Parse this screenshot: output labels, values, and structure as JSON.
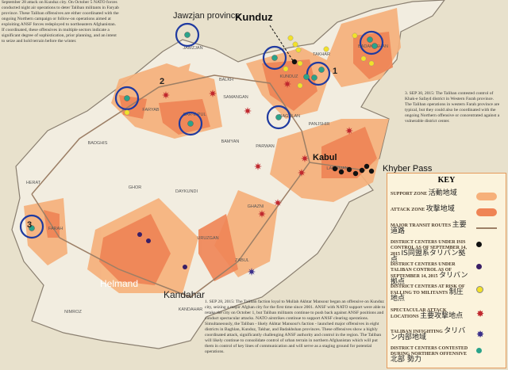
{
  "labels": {
    "jawzjan": "Jawzjan province",
    "kunduz": "Kunduz",
    "kabul": "Kabul",
    "khyber": "Khyber Pass",
    "helmand": "Helmand",
    "kandahar": "Kandahar",
    "n1": "1",
    "n2": "2",
    "n3": "3"
  },
  "provinces": [
    "JAWZJAN",
    "BALKH",
    "SAMANGAN",
    "KUNDUZ",
    "TAKHAR",
    "BADAKHSHAN",
    "BAGHLAN",
    "FARYAB",
    "SAR-E PUL",
    "BADGHIS",
    "HERAT",
    "GHOR",
    "BAMYAN",
    "PARWAN",
    "PANJSHIR",
    "LAGHMAN",
    "DAYKUNDI",
    "URUZGAN",
    "GHAZNI",
    "FARAH",
    "NIMROZ",
    "ZABUL",
    "KANDAHAR"
  ],
  "paragraphs": {
    "top_left": "September 28 attack on Kunduz city. On October 5 NATO forces conducted night air operations to deter Taliban militants in Faryab province. These Taliban offensives are either coordinated with the ongoing Northern campaign or follow-on operations aimed at exploiting ANSF forces redeployed to northeastern Afghanistan. If coordinated, these offensives in multiple sectors indicate a significant degree of sophistication, prior planning, and an intent to seize and hold terrain before the winter.",
    "right": "3. SEP 30, 2015: The Taliban contested control of Khak-e Safayd district in Western Farah province. The Taliban operations in western Farah province are typical, but they could also be coordinated with the ongoing Northern offensive or concentrated against a vulnerable district center.",
    "bottom": "1. SEP 28, 2015: The Taliban faction loyal to Mullah Akhtar Mansour began an offensive on Kunduz city, seizing a major Afghan city for the first time since 2001. ANSF with NATO support were able to retake the city on October 1, but Taliban militants continue to push back against ANSF positions and conduct spectacular attacks. NATO airstrikes continue to support ANSF clearing operations. Simultaneously, the Taliban - likely Akhtar Mansour's faction - launched major offensives in eight districts in Baghlan, Kunduz, Takhar, and Badakhshan provinces. These offensives show a highly coordinated attack, significantly challenging ANSF authority and control in the region. The Taliban will likely continue to consolidate control of urban terrain in northern Afghanistan which will put them in control of key lines of communication and will serve as a staging ground for potential operations."
  },
  "key": {
    "title": "KEY",
    "items": [
      {
        "label": "SUPPORT ZONE",
        "jp": "活動地域"
      },
      {
        "label": "ATTACK ZONE",
        "jp": "攻撃地域"
      },
      {
        "label": "MAJOR TRANSIT ROUTES",
        "jp": "主要道路"
      },
      {
        "label": "DISTRICT CENTERS UNDER ISIS CONTROL AS OF SEPTEMBER 14, 2015",
        "jp": "IS同盟系タリバン拠点"
      },
      {
        "label": "DISTRICT CENTERS UNDER TALIBAN CONTROL AS OF SEPTEMBER 14, 2015",
        "jp": "タリバン拠点"
      },
      {
        "label": "DISTRICT CENTERS AT RISK OF FALLING TO MILITANTS",
        "jp": "制圧地点"
      },
      {
        "label": "SPECTACULAR ATTACK LOCATIONS",
        "jp": "主要攻撃地点"
      },
      {
        "label": "TALIBAN INFIGHTING",
        "jp": "タリバン内部地域"
      },
      {
        "label": "DISTRICT CENTERS CONTESTED DURING NORTHERN OFFENSIVE",
        "jp": "北部 勢力"
      }
    ]
  }
}
